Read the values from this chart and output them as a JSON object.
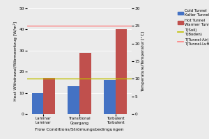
{
  "categories": [
    "Laminar\nLaminar",
    "Transitional\nÜbergang",
    "Turbulent\nTurbulent"
  ],
  "cold_values": [
    10,
    13,
    16
  ],
  "hot_values": [
    17,
    29,
    40
  ],
  "cold_color": "#4472C4",
  "hot_color": "#C0504D",
  "t_soil_value": 10,
  "t_soil_color": "#BFBF00",
  "t_tunnel_air_value": 25,
  "t_tunnel_air_color": "#FF8080",
  "ylabel_left": "Heat Withdrawal/Wärmeentzug [W/m²]",
  "ylabel_right": "Temperature/Temperatur [°C]",
  "xlabel": "Flow Conditions/Strömungsbedingungen",
  "ylim_left": [
    0,
    50
  ],
  "ylim_right": [
    0,
    30
  ],
  "legend_cold_label1": "Cold Tunnel",
  "legend_cold_label2": "Kalter Tunnel",
  "legend_hot_label1": "Hot Tunnel",
  "legend_hot_label2": "Warmer Tunnel",
  "legend_tsoil_label1": "T(Soil)",
  "legend_tsoil_label2": "T(Boden)",
  "legend_tair_label1": "T(Tunnel-Air)",
  "legend_tair_label2": "T(Tunnel-Luft)",
  "bg_color": "#EBEBEB",
  "bar_width": 0.32
}
